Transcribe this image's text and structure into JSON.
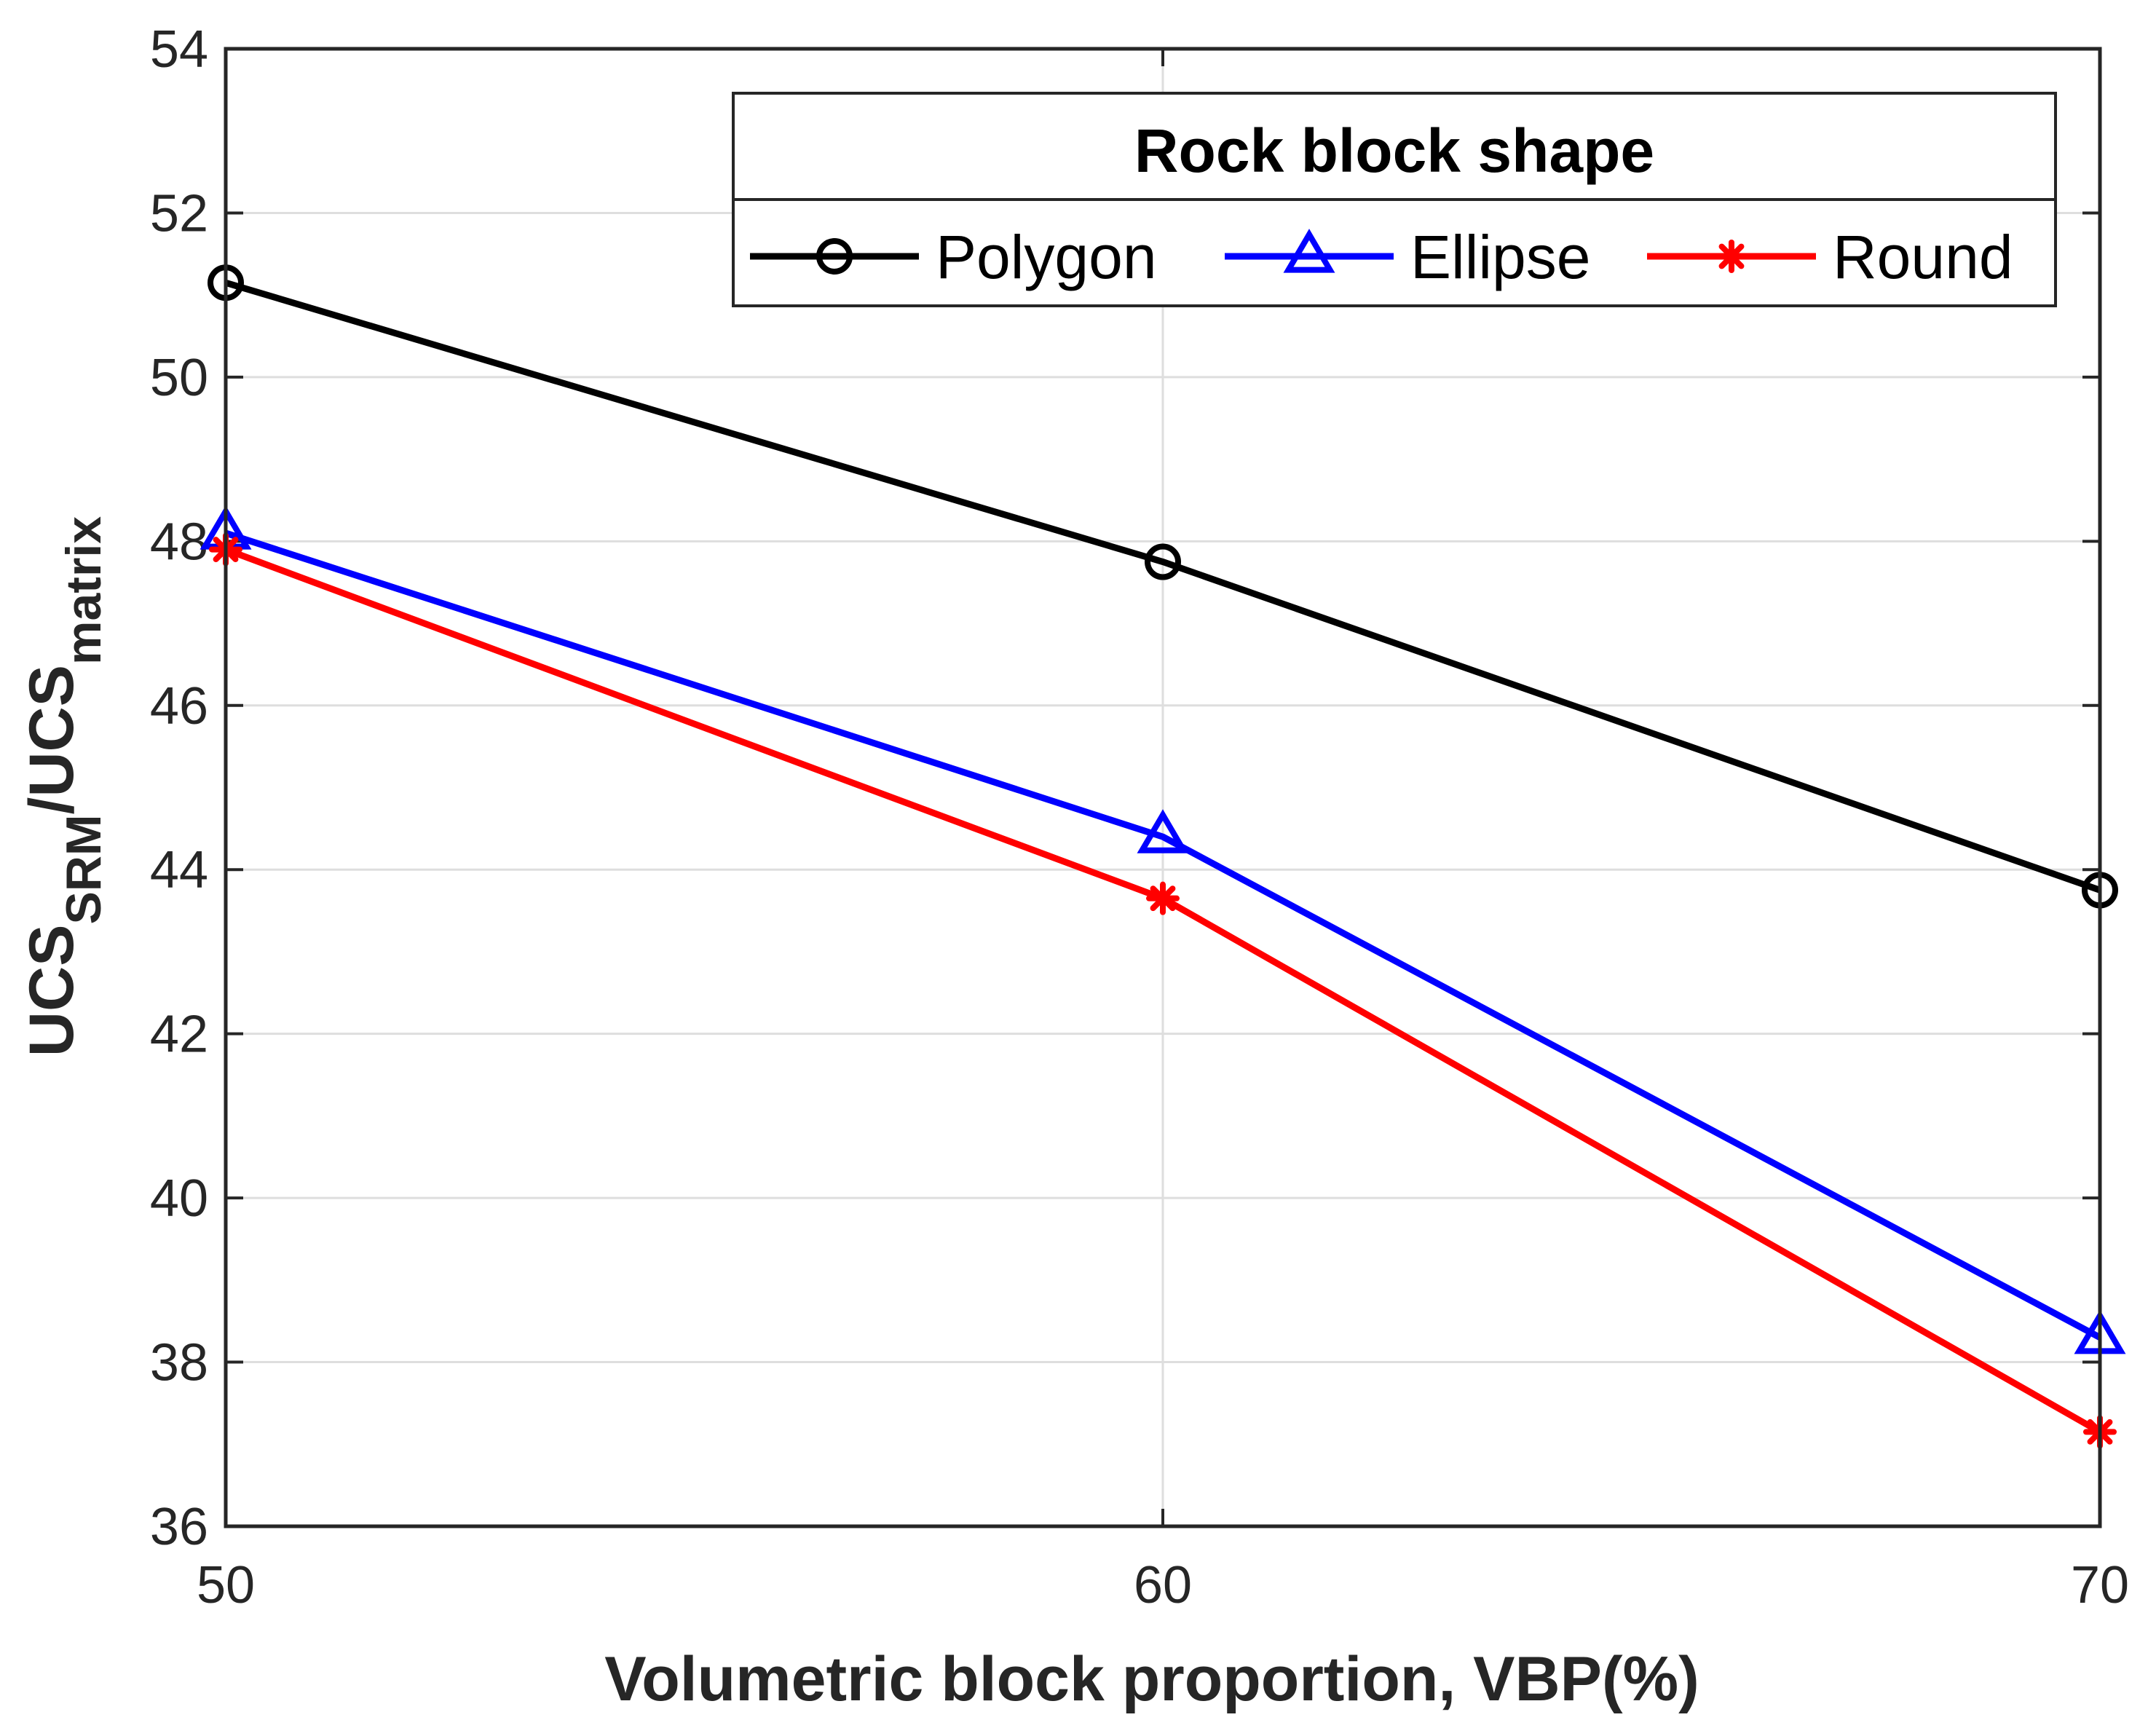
{
  "chart_data": {
    "type": "line",
    "x": [
      50,
      60,
      70
    ],
    "xticks": [
      50,
      60,
      70
    ],
    "yticks": [
      36,
      38,
      40,
      42,
      44,
      46,
      48,
      50,
      52,
      54
    ],
    "xlim": [
      50,
      70
    ],
    "ylim": [
      36,
      54
    ],
    "grid": true,
    "xlabel": "Volumetric block proportion, VBP(%)",
    "ylabel": {
      "part1": "UCS",
      "sub1": "SRM",
      "part2": "/UCS",
      "sub2": "matrix"
    },
    "legend": {
      "title": "Rock block shape",
      "placement": "top-right"
    },
    "series": [
      {
        "name": "Polygon",
        "values": [
          51.15,
          47.75,
          43.75
        ],
        "color": "#000000",
        "marker": "circle"
      },
      {
        "name": "Ellipse",
        "values": [
          48.1,
          44.4,
          38.3
        ],
        "color": "#0000ff",
        "marker": "triangle"
      },
      {
        "name": "Round",
        "values": [
          47.9,
          43.65,
          37.15
        ],
        "color": "#ff0000",
        "marker": "asterisk"
      }
    ]
  }
}
